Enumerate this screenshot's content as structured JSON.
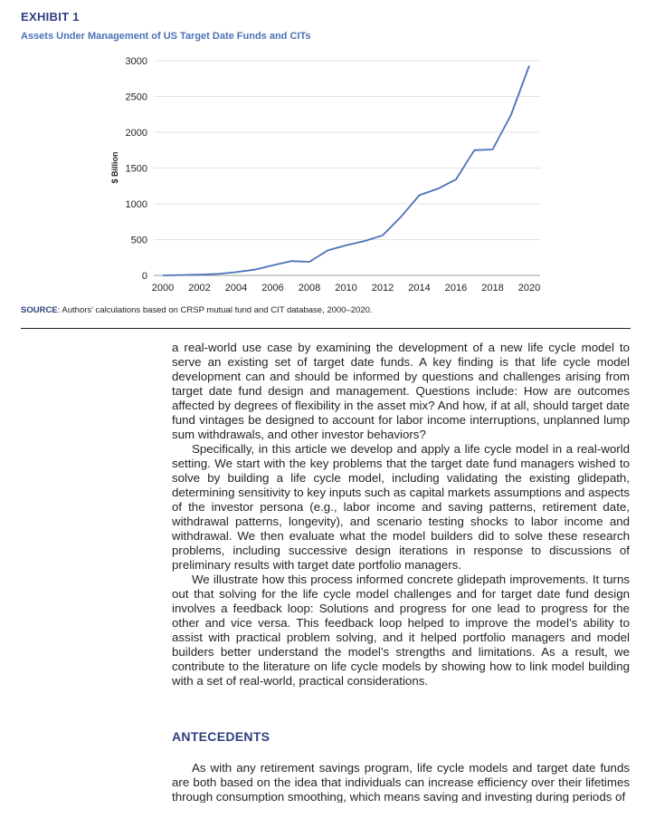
{
  "exhibit": {
    "label": "EXHIBIT 1",
    "title": "Assets Under Management of US Target Date Funds and CITs"
  },
  "chart_data": {
    "type": "line",
    "ylabel": "$ Billion",
    "xlabel": "",
    "xlim": [
      2000,
      2020
    ],
    "ylim": [
      0,
      3000
    ],
    "xticks": [
      2000,
      2002,
      2004,
      2006,
      2008,
      2010,
      2012,
      2014,
      2016,
      2018,
      2020
    ],
    "yticks": [
      0,
      500,
      1000,
      1500,
      2000,
      2500,
      3000
    ],
    "grid": "horizontal",
    "line_color": "#4a72b8",
    "series": [
      {
        "x": [
          2000,
          2001,
          2002,
          2003,
          2004,
          2005,
          2006,
          2007,
          2008,
          2009,
          2010,
          2011,
          2012,
          2013,
          2014,
          2015,
          2016,
          2017,
          2018,
          2019,
          2020
        ],
        "values": [
          0,
          5,
          10,
          20,
          45,
          80,
          140,
          200,
          190,
          350,
          420,
          480,
          560,
          820,
          1120,
          1210,
          1340,
          1750,
          1760,
          2240,
          2930
        ]
      }
    ]
  },
  "source": {
    "key": "SOURCE",
    "text": ": Authors’ calculations based on CRSP mutual fund and CIT database, 2000–2020."
  },
  "body": {
    "paragraphs": [
      "a real-world use case by examining the development of a new life cycle model to serve an existing set of target date funds. A key finding is that life cycle model development can and should be informed by questions and challenges arising from target date fund design and management. Questions include: How are outcomes affected by degrees of flexibility in the asset mix? And how, if at all, should target date fund vintages be designed to account for labor income interruptions, unplanned lump sum withdrawals, and other investor behaviors?",
      "Specifically, in this article we develop and apply a life cycle model in a real-world setting. We start with the key problems that the target date fund managers wished to solve by building a life cycle model, including validating the existing glidepath, determining sensitivity to key inputs such as capital markets assumptions and aspects of the investor persona (e.g., labor income and saving patterns, retirement date, withdrawal patterns, longevity), and scenario testing shocks to labor income and withdrawal. We then evaluate what the model builders did to solve these research problems, including successive design iterations in response to discussions of preliminary results with target date portfolio managers.",
      "We illustrate how this process informed concrete glidepath improvements. It turns out that solving for the life cycle model challenges and for target date fund design involves a feedback loop: Solutions and progress for one lead to progress for the other and vice versa. This feedback loop helped to improve the model’s ability to assist with practical problem solving, and it helped portfolio managers and model builders better understand the model’s strengths and limitations. As a result, we contribute to the literature on life cycle models by showing how to link model building with a set of real-world, practical considerations."
    ]
  },
  "section": {
    "heading": "ANTECEDENTS",
    "text": "As with any retirement savings program, life cycle models and target date funds are both based on the idea that individuals can increase efficiency over their lifetimes through consumption smoothing, which means saving and investing during periods of"
  }
}
